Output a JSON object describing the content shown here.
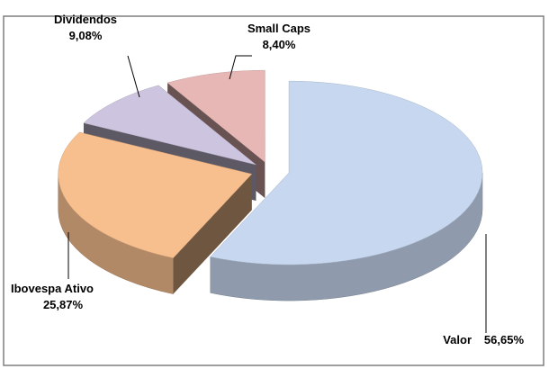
{
  "chart_data": {
    "type": "pie3d",
    "categories": [
      "Valor",
      "Ibovespa Ativo",
      "Dividendos",
      "Small Caps"
    ],
    "values": [
      56.65,
      25.87,
      9.08,
      8.4
    ],
    "value_labels": [
      "56,65%",
      "25,87%",
      "9,08%",
      "8,40%"
    ],
    "colors": [
      "#c6d7ef",
      "#f7be8e",
      "#cdc5df",
      "#e7b7b6"
    ]
  }
}
